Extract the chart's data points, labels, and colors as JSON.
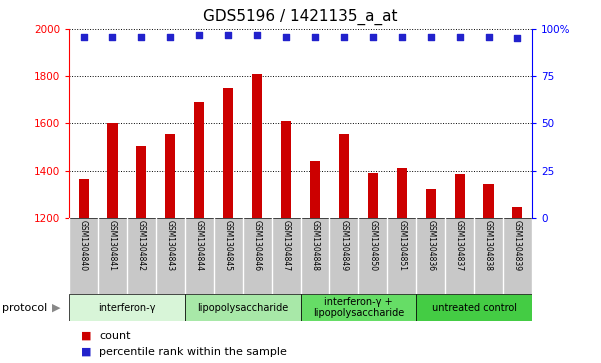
{
  "title": "GDS5196 / 1421135_a_at",
  "samples": [
    "GSM1304840",
    "GSM1304841",
    "GSM1304842",
    "GSM1304843",
    "GSM1304844",
    "GSM1304845",
    "GSM1304846",
    "GSM1304847",
    "GSM1304848",
    "GSM1304849",
    "GSM1304850",
    "GSM1304851",
    "GSM1304836",
    "GSM1304837",
    "GSM1304838",
    "GSM1304839"
  ],
  "counts": [
    1365,
    1600,
    1505,
    1555,
    1690,
    1750,
    1810,
    1610,
    1440,
    1555,
    1390,
    1410,
    1320,
    1385,
    1345,
    1245
  ],
  "percentile_ranks": [
    96,
    96,
    96,
    96,
    97,
    97,
    97,
    96,
    96,
    96,
    96,
    96,
    96,
    96,
    96,
    95
  ],
  "ylim_left": [
    1200,
    2000
  ],
  "ylim_right": [
    0,
    100
  ],
  "yticks_left": [
    1200,
    1400,
    1600,
    1800,
    2000
  ],
  "yticks_right": [
    0,
    25,
    50,
    75,
    100
  ],
  "ytick_labels_right": [
    "0",
    "25",
    "50",
    "75",
    "100%"
  ],
  "bar_color": "#cc0000",
  "dot_color": "#2222cc",
  "groups": [
    {
      "label": "interferon-γ",
      "start": 0,
      "end": 4,
      "color": "#d8f5d8"
    },
    {
      "label": "lipopolysaccharide",
      "start": 4,
      "end": 8,
      "color": "#a8e8a8"
    },
    {
      "label": "interferon-γ +\nlipopolysaccharide",
      "start": 8,
      "end": 12,
      "color": "#66dd66"
    },
    {
      "label": "untreated control",
      "start": 12,
      "end": 16,
      "color": "#44cc44"
    }
  ],
  "protocol_label": "protocol",
  "legend_count_label": "count",
  "legend_percentile_label": "percentile rank within the sample",
  "sample_bg_color": "#c8c8c8",
  "sample_line_color": "#ffffff",
  "plot_bg_color": "#ffffff",
  "grid_color": "#000000",
  "title_fontsize": 11,
  "tick_fontsize": 7.5,
  "sample_fontsize": 5.5,
  "proto_fontsize": 7,
  "legend_fontsize": 8
}
